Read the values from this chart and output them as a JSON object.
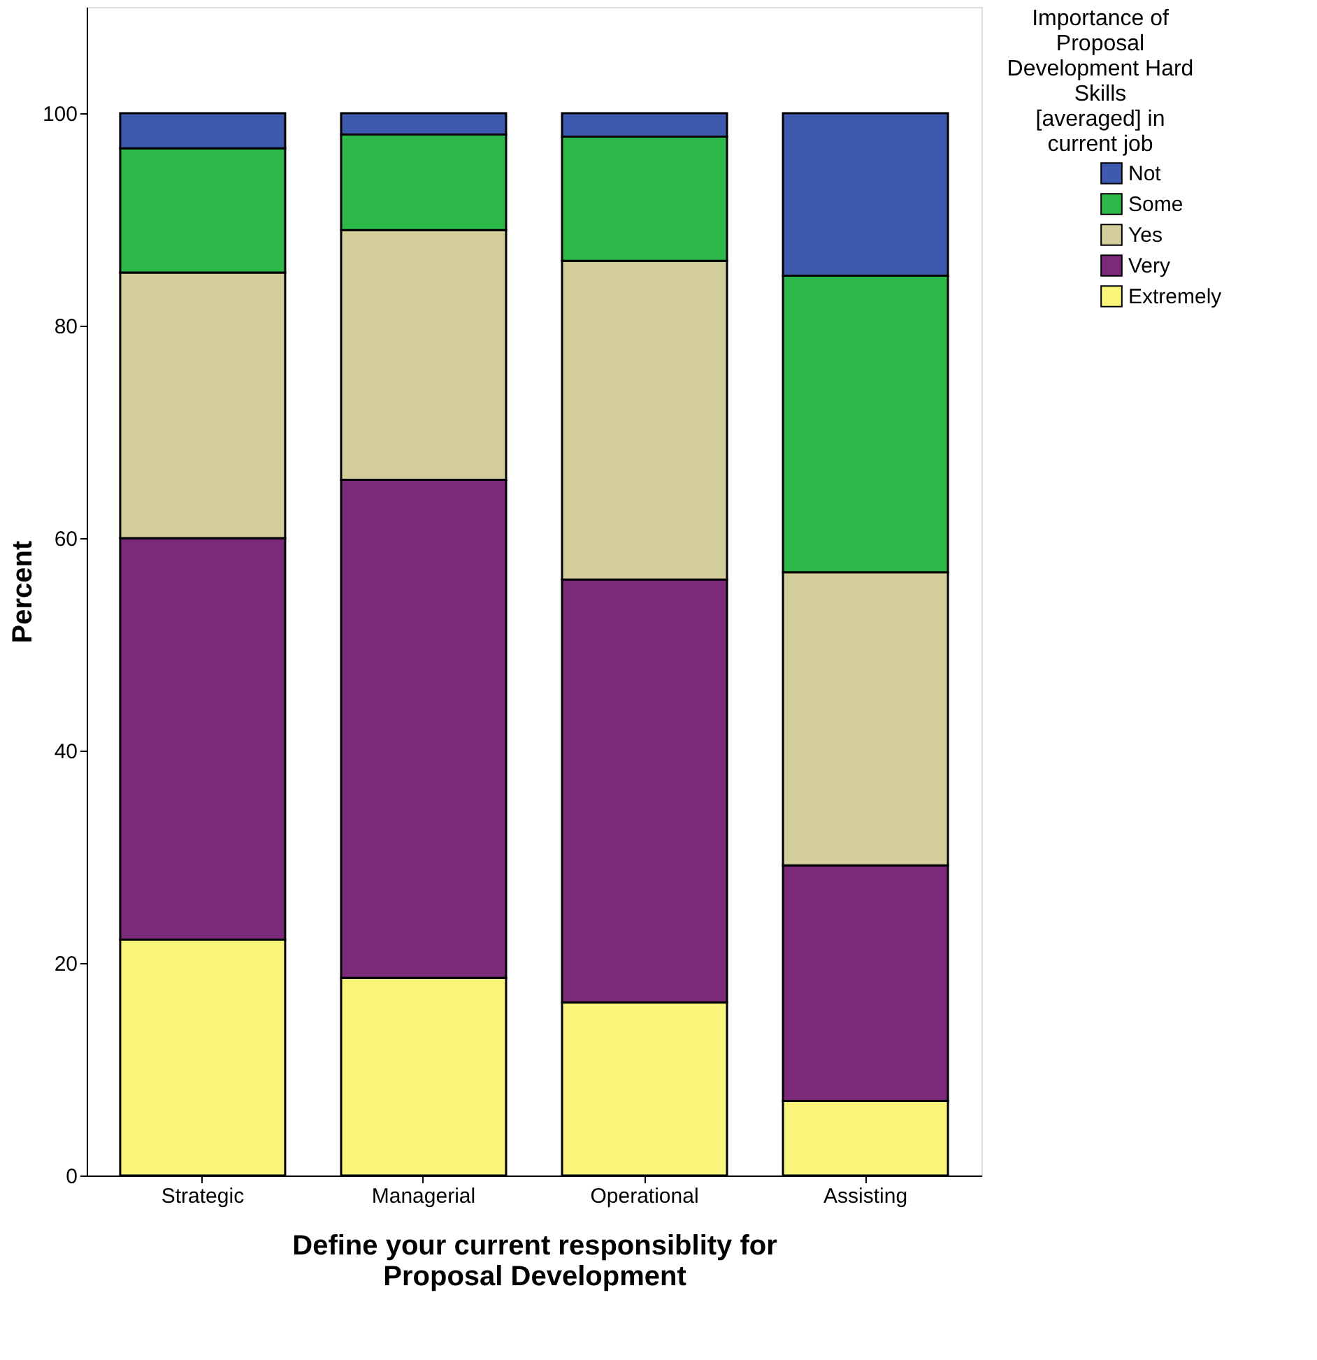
{
  "chart_data": {
    "type": "bar",
    "stacked": true,
    "xlabel": "Define your current responsiblity for Proposal Development",
    "ylabel": "Percent",
    "legend_title": "Importance of Proposal Development Hard Skills [averaged] in current job",
    "categories": [
      "Strategic",
      "Managerial",
      "Operational",
      "Assisting"
    ],
    "series": [
      {
        "name": "Extremely",
        "color": "#f9f57a",
        "values": [
          22.2,
          18.6,
          16.3,
          7.0
        ]
      },
      {
        "name": "Very",
        "color": "#7b2a7a",
        "values": [
          37.8,
          46.9,
          39.8,
          22.2
        ]
      },
      {
        "name": "Yes",
        "color": "#d3ce9a",
        "values": [
          25.0,
          23.5,
          30.0,
          27.6
        ]
      },
      {
        "name": "Some",
        "color": "#2db84a",
        "values": [
          11.7,
          9.0,
          11.7,
          27.9
        ]
      },
      {
        "name": "Not",
        "color": "#3d5aae",
        "values": [
          3.3,
          2.0,
          2.2,
          15.3
        ]
      }
    ],
    "ylim": [
      0,
      110
    ],
    "yticks": [
      0,
      20,
      40,
      60,
      80,
      100
    ],
    "grid": false,
    "legend": "top right"
  }
}
